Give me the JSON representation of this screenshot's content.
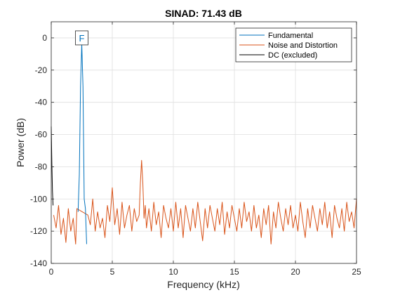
{
  "chart_data": {
    "type": "line",
    "title": "SINAD:  71.43 dB",
    "xlabel": "Frequency (kHz)",
    "ylabel": "Power (dB)",
    "xlim": [
      0,
      25
    ],
    "ylim": [
      -140,
      10
    ],
    "xticks": [
      0,
      5,
      10,
      15,
      20,
      25
    ],
    "yticks": [
      0,
      -20,
      -40,
      -60,
      -80,
      -100,
      -120,
      -140
    ],
    "grid": true,
    "legend_position": "top-right",
    "fundamental_marker": {
      "label": "F",
      "x": 2.5,
      "y": 0
    },
    "series": [
      {
        "name": "Fundamental",
        "color": "#0072BD",
        "x": [
          2.2,
          2.3,
          2.4,
          2.5,
          2.6,
          2.7,
          2.8,
          2.9
        ],
        "y": [
          -108,
          -85,
          -30,
          -3.7,
          -30,
          -100,
          -106,
          -128
        ]
      },
      {
        "name": "Noise and Distortion",
        "color": "#D95319",
        "x": [
          0.2,
          0.4,
          0.6,
          0.8,
          1.0,
          1.2,
          1.4,
          1.6,
          1.8,
          2.0,
          2.1,
          3.0,
          3.2,
          3.4,
          3.6,
          3.8,
          4.0,
          4.2,
          4.4,
          4.6,
          4.8,
          5.0,
          5.2,
          5.4,
          5.6,
          5.8,
          6.0,
          6.2,
          6.4,
          6.6,
          6.8,
          7.0,
          7.2,
          7.3,
          7.4,
          7.5,
          7.6,
          7.7,
          7.8,
          8.0,
          8.2,
          8.4,
          8.6,
          8.8,
          9.0,
          9.2,
          9.4,
          9.6,
          9.8,
          10.0,
          10.2,
          10.4,
          10.6,
          10.8,
          11.0,
          11.2,
          11.4,
          11.6,
          11.8,
          12.0,
          12.2,
          12.4,
          12.6,
          12.8,
          13.0,
          13.2,
          13.4,
          13.6,
          13.8,
          14.0,
          14.2,
          14.4,
          14.6,
          14.8,
          15.0,
          15.2,
          15.4,
          15.6,
          15.8,
          16.0,
          16.2,
          16.4,
          16.6,
          16.8,
          17.0,
          17.2,
          17.4,
          17.6,
          17.8,
          18.0,
          18.2,
          18.4,
          18.6,
          18.8,
          19.0,
          19.2,
          19.4,
          19.6,
          19.8,
          20.0,
          20.2,
          20.4,
          20.6,
          20.8,
          21.0,
          21.2,
          21.4,
          21.6,
          21.8,
          22.0,
          22.2,
          22.4,
          22.6,
          22.8,
          23.0,
          23.2,
          23.4,
          23.6,
          23.8,
          24.0,
          24.2,
          24.4,
          24.6,
          24.8,
          25.0
        ],
        "y": [
          -110,
          -118,
          -104,
          -122,
          -112,
          -127,
          -106,
          -120,
          -112,
          -128,
          -106,
          -110,
          -116,
          -100,
          -120,
          -108,
          -118,
          -112,
          -124,
          -104,
          -114,
          -93,
          -116,
          -106,
          -122,
          -102,
          -118,
          -110,
          -104,
          -120,
          -106,
          -114,
          -110,
          -90,
          -76,
          -90,
          -112,
          -104,
          -118,
          -106,
          -120,
          -102,
          -116,
          -108,
          -124,
          -104,
          -112,
          -118,
          -106,
          -120,
          -102,
          -118,
          -106,
          -124,
          -104,
          -112,
          -120,
          -106,
          -118,
          -102,
          -114,
          -126,
          -106,
          -118,
          -104,
          -112,
          -120,
          -106,
          -116,
          -102,
          -122,
          -108,
          -118,
          -104,
          -112,
          -120,
          -106,
          -118,
          -102,
          -114,
          -108,
          -120,
          -104,
          -118,
          -110,
          -124,
          -106,
          -116,
          -104,
          -128,
          -108,
          -118,
          -102,
          -112,
          -120,
          -106,
          -116,
          -104,
          -118,
          -110,
          -120,
          -102,
          -114,
          -124,
          -106,
          -118,
          -104,
          -112,
          -120,
          -106,
          -116,
          -102,
          -118,
          -108,
          -124,
          -104,
          -112,
          -118,
          -106,
          -120,
          -102,
          -114,
          -108,
          -118,
          -100
        ]
      },
      {
        "name": "DC (excluded)",
        "color": "#000000",
        "x": [
          0.0,
          0.05,
          0.1,
          0.15
        ],
        "y": [
          -55,
          -78,
          -95,
          -104
        ]
      }
    ]
  }
}
